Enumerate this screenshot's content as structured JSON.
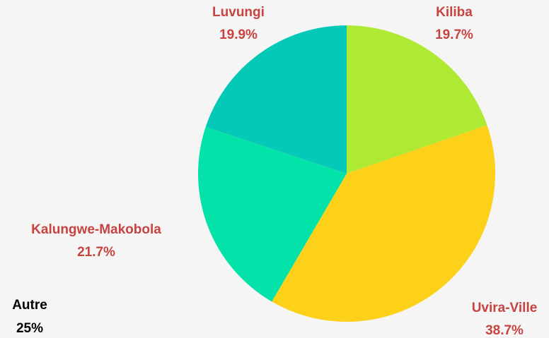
{
  "chart_data": {
    "type": "pie",
    "categories": [
      "Kiliba",
      "Uvira-Ville",
      "Kalungwe-Makobola",
      "Luvungi"
    ],
    "values": [
      19.7,
      38.7,
      21.7,
      19.9
    ],
    "value_labels": [
      "19.7%",
      "38.7%",
      "21.7%",
      "19.9%"
    ],
    "colors": [
      "#aee934",
      "#fdd11a",
      "#03e3a9",
      "#04c9b7"
    ],
    "start_angle": 90,
    "direction": "clockwise",
    "annotations": [
      {
        "text": "Autre",
        "value_label": "25%"
      }
    ]
  }
}
